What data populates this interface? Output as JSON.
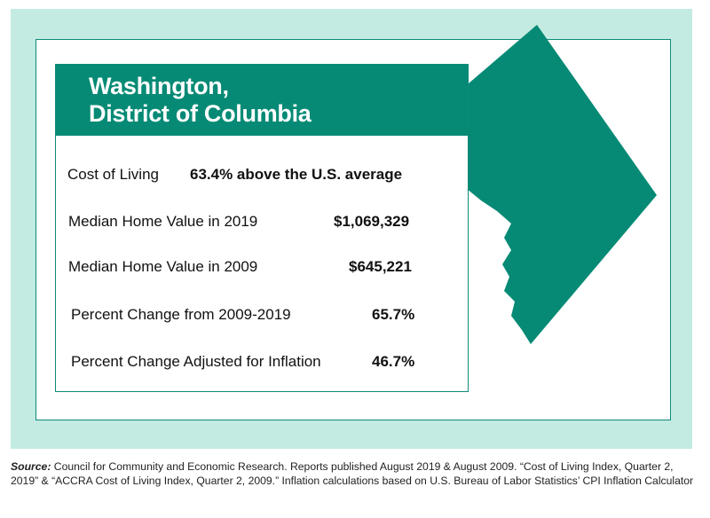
{
  "title": {
    "line1": "Washington,",
    "line2": "District of Columbia"
  },
  "rows": [
    {
      "label": "Cost of Living",
      "value": "63.4% above the U.S. average"
    },
    {
      "label": "Median Home Value in 2019",
      "value": "$1,069,329"
    },
    {
      "label": "Median Home Value in 2009",
      "value": "$645,221"
    },
    {
      "label": "Percent Change from 2009-2019",
      "value": "65.7%"
    },
    {
      "label": "Percent Change Adjusted for Inflation",
      "value": "46.7%"
    }
  ],
  "footer": {
    "source_label": "Source:",
    "source_text": " Council for Community and Economic Research. Reports published August 2019 & August 2009. “Cost of Living Index, Quarter 2, 2019” & “ACCRA Cost of Living Index, Quarter 2, 2009.” Inflation calculations based on U.S. Bureau of Labor Statistics’ CPI Inflation Calculator"
  },
  "colors": {
    "brand_teal": "#068a75",
    "frame_mint": "#c3ebe2",
    "text": "#111111"
  },
  "icons": {
    "map": "dc-map-icon"
  }
}
